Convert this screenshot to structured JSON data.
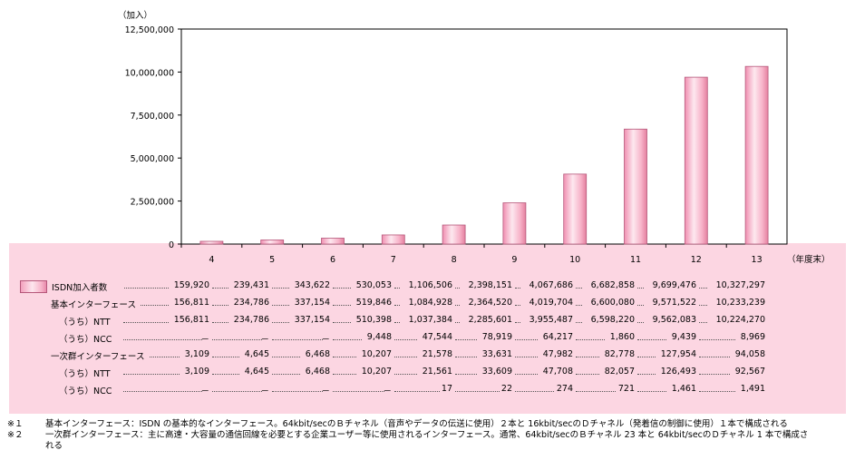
{
  "chart_data": {
    "type": "bar",
    "unit_label": "（加入）",
    "x_unit_label": "（年度末）",
    "categories": [
      "4",
      "5",
      "6",
      "7",
      "8",
      "9",
      "10",
      "11",
      "12",
      "13"
    ],
    "y_ticks": [
      "12,500,000",
      "10,000,000",
      "7,500,000",
      "5,000,000",
      "2,500,000",
      "0"
    ],
    "ylim": [
      0,
      12500000
    ],
    "series": [
      {
        "name": "ISDN加入者数",
        "values": [
          159920,
          239431,
          343622,
          530053,
          1106506,
          2398151,
          4067686,
          6682858,
          9699476,
          10327297
        ]
      }
    ],
    "bar_color": "#f4a6c0",
    "grid": false
  },
  "table": {
    "rows": [
      {
        "label": "ISDN加入者数",
        "legend": true,
        "values": [
          "159,920",
          "239,431",
          "343,622",
          "530,053",
          "1,106,506",
          "2,398,151",
          "4,067,686",
          "6,682,858",
          "9,699,476",
          "10,327,297"
        ]
      },
      {
        "label": "基本インターフェース",
        "legend": false,
        "values": [
          "156,811",
          "234,786",
          "337,154",
          "519,846",
          "1,084,928",
          "2,364,520",
          "4,019,704",
          "6,600,080",
          "9,571,522",
          "10,233,239"
        ]
      },
      {
        "label": "（うち）NTT",
        "legend": false,
        "values": [
          "156,811",
          "234,786",
          "337,154",
          "510,398",
          "1,037,384",
          "2,285,601",
          "3,955,487",
          "6,598,220",
          "9,562,083",
          "10,224,270"
        ]
      },
      {
        "label": "（うち）NCC",
        "legend": false,
        "values": [
          "－",
          "－",
          "－",
          "9,448",
          "47,544",
          "78,919",
          "64,217",
          "1,860",
          "9,439",
          "8,969"
        ]
      },
      {
        "label": "一次群インターフェース",
        "legend": false,
        "values": [
          "3,109",
          "4,645",
          "6,468",
          "10,207",
          "21,578",
          "33,631",
          "47,982",
          "82,778",
          "127,954",
          "94,058"
        ]
      },
      {
        "label": "（うち）NTT",
        "legend": false,
        "values": [
          "3,109",
          "4,645",
          "6,468",
          "10,207",
          "21,561",
          "33,609",
          "47,708",
          "82,057",
          "126,493",
          "92,567"
        ]
      },
      {
        "label": "（うち）NCC",
        "legend": false,
        "values": [
          "－",
          "－",
          "－",
          "－",
          "17",
          "22",
          "274",
          "721",
          "1,461",
          "1,491"
        ]
      }
    ]
  },
  "notes": [
    {
      "num": "※１",
      "text": "基本インターフェース：ISDN の基本的なインターフェース。64kbit/secのＢチャネル（音声やデータの伝送に使用）２本と 16kbit/secのＤチャネル（発着信の制御に使用）１本で構成される"
    },
    {
      "num": "※２",
      "text": "一次群インターフェース：主に高速・大容量の通信回線を必要とする企業ユーザー等に使用されるインターフェース。通常、64kbit/secのＢチャネル 23 本と 64kbit/secのＤチャネル 1 本で構成さ"
    },
    {
      "num": "",
      "text": "れる"
    }
  ]
}
